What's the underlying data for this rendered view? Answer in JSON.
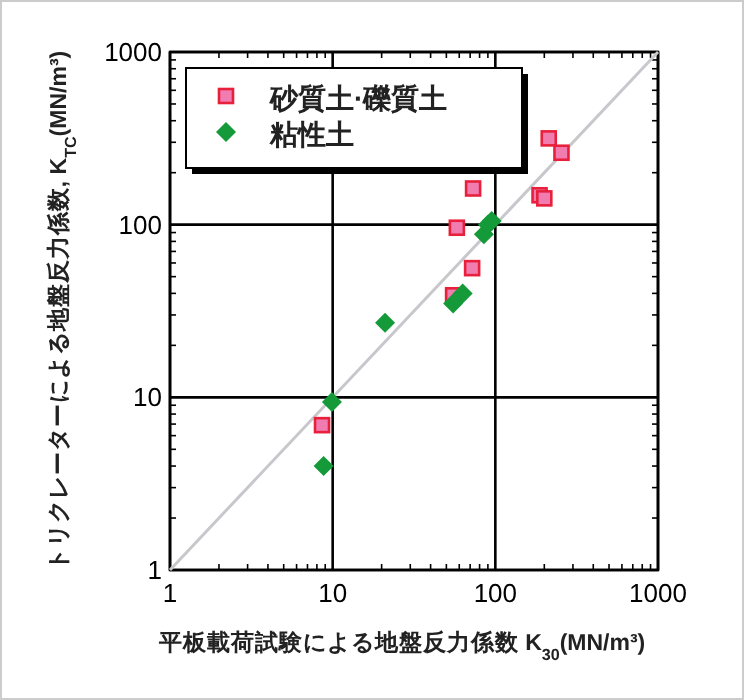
{
  "chart_data": {
    "type": "scatter",
    "xlabel": "平板載荷試験による地盤反力係数 K$_{30}$(MN/m³)",
    "ylabel": "トリクレーターによる地盤反力係数, K$_{TC}$(MN/m³)",
    "log": "xy",
    "xlim": [
      1,
      1000
    ],
    "ylim": [
      1,
      1000
    ],
    "xticks": [
      1,
      10,
      100,
      1000
    ],
    "yticks": [
      1,
      10,
      100,
      1000
    ],
    "grid": true,
    "legend": "top left",
    "series": [
      {
        "type": "line",
        "color": "#c8c8cc",
        "marker": "none",
        "x": [
          1,
          1000
        ],
        "values": [
          1,
          1000
        ]
      },
      {
        "name": "砂質土·礫質土",
        "color": "#f07cb0",
        "marker": "square",
        "x": [
          213,
          255,
          73,
          187,
          200,
          58,
          72,
          55,
          8.6
        ],
        "values": [
          316,
          261,
          162,
          148,
          142,
          96,
          56,
          39,
          6.9
        ]
      },
      {
        "name": "粘性土",
        "color": "#149a38",
        "marker": "diamond",
        "x": [
          95,
          85,
          90,
          63,
          55,
          21,
          9.9,
          8.8
        ],
        "values": [
          105,
          88,
          100,
          40,
          35,
          27,
          9.4,
          4.0
        ]
      }
    ]
  }
}
